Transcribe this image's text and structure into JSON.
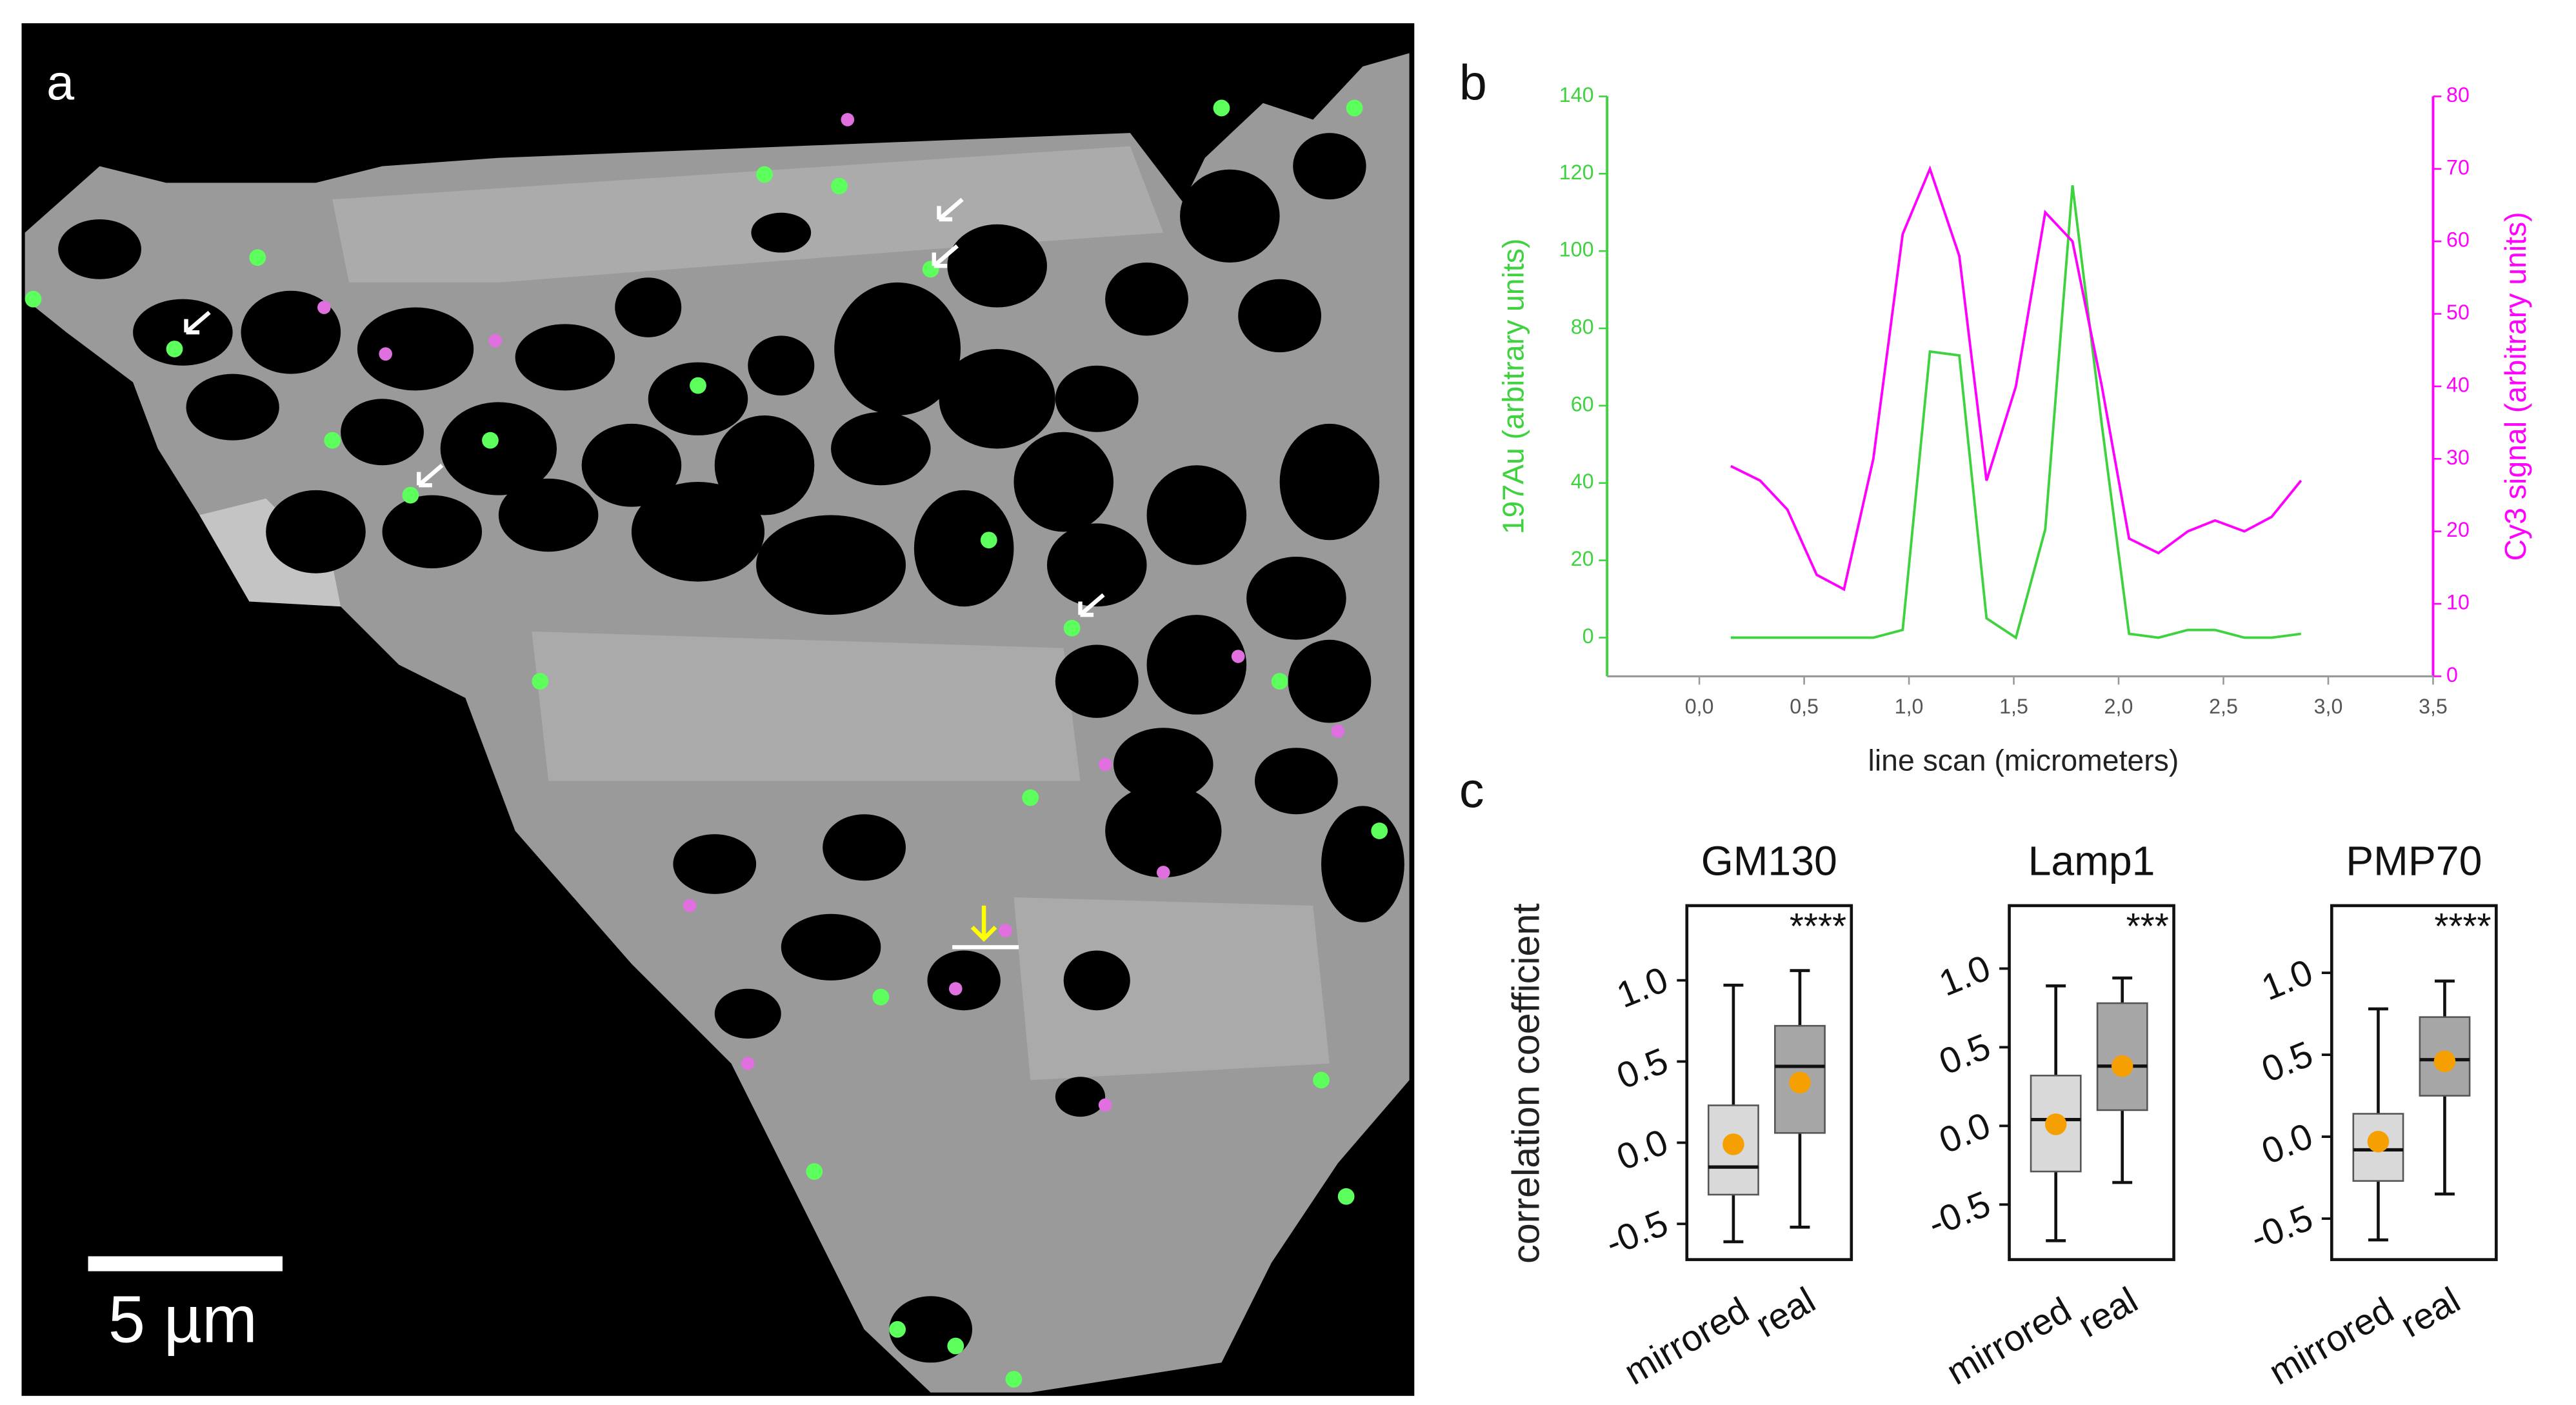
{
  "image": {
    "panel_label": "a",
    "scale_bar": "5 µm"
  },
  "panel_c": {
    "panel_label": "c",
    "ylabel": "correlation coefficient"
  },
  "chart_data": [
    {
      "type": "line",
      "panel_label": "b",
      "xlabel": "line scan (micrometers)",
      "ylabel": "197Au (arbitrary units)",
      "y2label": "Cy3 signal (arbitrary units)",
      "x": [
        0.15,
        0.29,
        0.42,
        0.56,
        0.69,
        0.83,
        0.97,
        1.1,
        1.24,
        1.37,
        1.51,
        1.65,
        1.78,
        1.92,
        2.05,
        2.19,
        2.33,
        2.46,
        2.6,
        2.73,
        2.87
      ],
      "series": [
        {
          "color": "#3fd23f",
          "axis": "y",
          "values": [
            0,
            0,
            0,
            0,
            0,
            0,
            2,
            74,
            73,
            5,
            0,
            28,
            117,
            55,
            1,
            0,
            2,
            2,
            0,
            0,
            1
          ]
        },
        {
          "color": "#ff00ff",
          "axis": "y2",
          "values": [
            29,
            27,
            23,
            14,
            12,
            30,
            61,
            70,
            58,
            27,
            40,
            64,
            60,
            40,
            19,
            17,
            20,
            21.5,
            20,
            22,
            27
          ]
        }
      ],
      "xlim": [
        -0.44,
        3.5
      ],
      "xticks": [
        {
          "value": 0,
          "label": "0,0"
        },
        {
          "value": 0.5,
          "label": "0,5"
        },
        {
          "value": 1,
          "label": "1,0"
        },
        {
          "value": 1.5,
          "label": "1,5"
        },
        {
          "value": 2,
          "label": "2,0"
        },
        {
          "value": 2.5,
          "label": "2,5"
        },
        {
          "value": 3,
          "label": "3,0"
        },
        {
          "value": 3.5,
          "label": "3,5"
        }
      ],
      "ylim": [
        -10,
        140
      ],
      "yticks": [
        0,
        20,
        40,
        60,
        80,
        100,
        120,
        140
      ],
      "y2lim": [
        0,
        80
      ],
      "y2ticks": [
        0,
        10,
        20,
        30,
        40,
        50,
        60,
        70,
        80
      ]
    },
    {
      "type": "box",
      "title": "GM130",
      "annotation": "****",
      "categories": [
        "mirrored",
        "real"
      ],
      "whislo": [
        -0.61,
        -0.52
      ],
      "q1": [
        -0.32,
        0.06
      ],
      "median": [
        -0.15,
        0.47
      ],
      "q3": [
        0.23,
        0.72
      ],
      "whishi": [
        0.97,
        1.06
      ],
      "mean": [
        -0.01,
        0.37
      ],
      "ylim": [
        -0.72,
        1.46
      ],
      "yticks": [
        -0.5,
        {
          "value": 0,
          "label": "0.0"
        },
        0.5,
        {
          "value": 1,
          "label": "1.0"
        }
      ],
      "box_colors": [
        "#d9d9d9",
        "#a6a6a6"
      ],
      "mean_color": "#f5a000"
    },
    {
      "type": "box",
      "title": "Lamp1",
      "annotation": "***",
      "categories": [
        "mirrored",
        "real"
      ],
      "whislo": [
        -0.73,
        -0.36
      ],
      "q1": [
        -0.29,
        0.1
      ],
      "median": [
        0.04,
        0.38
      ],
      "q3": [
        0.32,
        0.78
      ],
      "whishi": [
        0.89,
        0.94
      ],
      "mean": [
        0.01,
        0.38
      ],
      "ylim": [
        -0.85,
        1.4
      ],
      "yticks": [
        -0.5,
        {
          "value": 0,
          "label": "0.0"
        },
        0.5,
        {
          "value": 1,
          "label": "1.0"
        }
      ],
      "box_colors": [
        "#d9d9d9",
        "#a6a6a6"
      ],
      "mean_color": "#f5a000"
    },
    {
      "type": "box",
      "title": "PMP70",
      "annotation": "****",
      "categories": [
        "mirrored",
        "real"
      ],
      "whislo": [
        -0.63,
        -0.35
      ],
      "q1": [
        -0.27,
        0.25
      ],
      "median": [
        -0.08,
        0.47
      ],
      "q3": [
        0.14,
        0.73
      ],
      "whishi": [
        0.78,
        0.95
      ],
      "mean": [
        -0.03,
        0.46
      ],
      "ylim": [
        -0.75,
        1.41
      ],
      "yticks": [
        -0.5,
        {
          "value": 0,
          "label": "0.0"
        },
        0.5,
        {
          "value": 1,
          "label": "1.0"
        }
      ],
      "box_colors": [
        "#d9d9d9",
        "#a6a6a6"
      ],
      "mean_color": "#f5a000"
    }
  ]
}
